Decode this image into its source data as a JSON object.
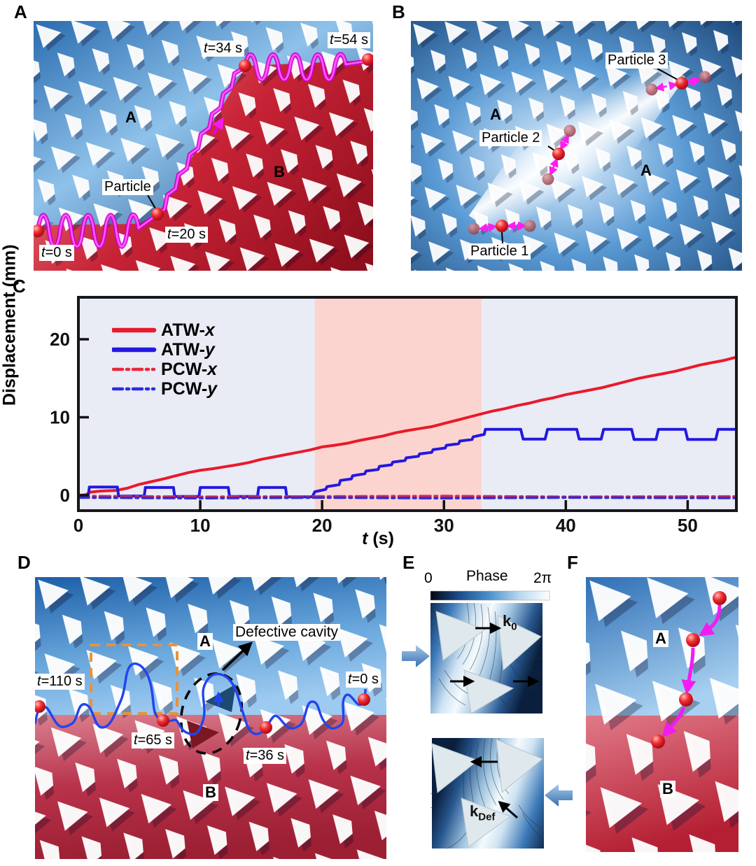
{
  "panel_labels": {
    "a": "A",
    "b": "B",
    "c": "C",
    "d": "D",
    "e": "E",
    "f": "F"
  },
  "panelA": {
    "t0": {
      "sym": "t",
      "rest": "=0 s"
    },
    "t20": {
      "sym": "t",
      "rest": "=20 s"
    },
    "t34": {
      "sym": "t",
      "rest": "=34 s"
    },
    "t54": {
      "sym": "t",
      "rest": "=54 s"
    },
    "particle": "Particle",
    "region_a": "A",
    "region_b": "B"
  },
  "panelB": {
    "particle1": "Particle 1",
    "particle2": "Particle 2",
    "particle3": "Particle 3",
    "region_a1": "A",
    "region_a2": "A"
  },
  "panelD": {
    "t110": {
      "sym": "t",
      "rest": "=110 s"
    },
    "t0": {
      "sym": "t",
      "rest": "=0 s"
    },
    "t65": {
      "sym": "t",
      "rest": "=65 s"
    },
    "t36": {
      "sym": "t",
      "rest": "=36 s"
    },
    "defective_cavity": "Defective cavity",
    "region_a": "A",
    "region_b": "B"
  },
  "panelE": {
    "colorbar": {
      "title": "Phase",
      "min": "0",
      "max": "2π"
    },
    "k0": {
      "base": "k",
      "sub": "0"
    },
    "kdef": {
      "base": "k",
      "sub": "Def"
    }
  },
  "panelF": {
    "region_a": "A",
    "region_b": "B"
  },
  "chart_data": {
    "type": "line",
    "title": "",
    "xlabel": {
      "sym": "t",
      "rest": " (s)"
    },
    "ylabel": "Displacement (mm)",
    "xlim": [
      0,
      54
    ],
    "ylim": [
      -2,
      25.4
    ],
    "xticks": [
      0,
      10,
      20,
      30,
      40,
      50
    ],
    "yticks": [
      0,
      10,
      20
    ],
    "grid": false,
    "legend_position": "upper-left",
    "bands": [
      {
        "x0": 0,
        "x1": 19.4,
        "color": "#e9ebf5"
      },
      {
        "x0": 19.4,
        "x1": 33.1,
        "color": "#fbd4cf"
      },
      {
        "x0": 33.1,
        "x1": 54,
        "color": "#e9ebf5"
      }
    ],
    "series": [
      {
        "label_prefix": "ATW-",
        "label_var": "x",
        "color": "#e81a2b",
        "dash": "solid",
        "points": [
          [
            0,
            0
          ],
          [
            0.6,
            0.05
          ],
          [
            1,
            0.4
          ],
          [
            1.6,
            0.5
          ],
          [
            2,
            0.55
          ],
          [
            3,
            0.6
          ],
          [
            4,
            0.9
          ],
          [
            5,
            1.4
          ],
          [
            6,
            1.75
          ],
          [
            7,
            2.1
          ],
          [
            8,
            2.5
          ],
          [
            9,
            2.9
          ],
          [
            10,
            3.2
          ],
          [
            11,
            3.4
          ],
          [
            12,
            3.65
          ],
          [
            13,
            3.9
          ],
          [
            14,
            4.2
          ],
          [
            15,
            4.6
          ],
          [
            16,
            4.9
          ],
          [
            17,
            5.2
          ],
          [
            18,
            5.5
          ],
          [
            19,
            5.8
          ],
          [
            20,
            6.2
          ],
          [
            21,
            6.4
          ],
          [
            22,
            6.65
          ],
          [
            23,
            7
          ],
          [
            24,
            7.3
          ],
          [
            25,
            7.6
          ],
          [
            26,
            8
          ],
          [
            27,
            8.3
          ],
          [
            28,
            8.55
          ],
          [
            29,
            8.8
          ],
          [
            30,
            9.2
          ],
          [
            31,
            9.6
          ],
          [
            32,
            10
          ],
          [
            33,
            10.4
          ],
          [
            34,
            10.8
          ],
          [
            35,
            11.1
          ],
          [
            36,
            11.5
          ],
          [
            37,
            11.8
          ],
          [
            38,
            12.2
          ],
          [
            39,
            12.5
          ],
          [
            40,
            12.9
          ],
          [
            41,
            13.2
          ],
          [
            42,
            13.5
          ],
          [
            43,
            13.8
          ],
          [
            44,
            14.2
          ],
          [
            45,
            14.6
          ],
          [
            46,
            15
          ],
          [
            47,
            15.3
          ],
          [
            48,
            15.6
          ],
          [
            49,
            15.9
          ],
          [
            50,
            16.3
          ],
          [
            51,
            16.7
          ],
          [
            52,
            17
          ],
          [
            53,
            17.3
          ],
          [
            54,
            17.7
          ]
        ]
      },
      {
        "label_prefix": "ATW-",
        "label_var": "y",
        "color": "#2318e0",
        "dash": "solid",
        "points": [
          [
            0,
            -0.1
          ],
          [
            0.8,
            -0.1
          ],
          [
            0.9,
            1.05
          ],
          [
            3.2,
            1.05
          ],
          [
            3.3,
            -0.1
          ],
          [
            5.4,
            -0.1
          ],
          [
            5.5,
            1.0
          ],
          [
            7.8,
            1.0
          ],
          [
            7.9,
            -0.15
          ],
          [
            9.9,
            -0.15
          ],
          [
            10.0,
            1.0
          ],
          [
            12.3,
            1.0
          ],
          [
            12.4,
            -0.15
          ],
          [
            14.7,
            -0.15
          ],
          [
            14.8,
            1.0
          ],
          [
            17.0,
            1.0
          ],
          [
            17.1,
            -0.2
          ],
          [
            19.2,
            -0.2
          ],
          [
            19.4,
            0.45
          ],
          [
            20.3,
            0.75
          ],
          [
            20.4,
            1.1
          ],
          [
            21.4,
            1.35
          ],
          [
            21.5,
            1.9
          ],
          [
            22.4,
            2.1
          ],
          [
            22.5,
            2.5
          ],
          [
            23.5,
            2.75
          ],
          [
            23.6,
            3.1
          ],
          [
            24.6,
            3.3
          ],
          [
            24.7,
            3.7
          ],
          [
            25.7,
            3.9
          ],
          [
            25.8,
            4.25
          ],
          [
            26.8,
            4.45
          ],
          [
            26.9,
            4.8
          ],
          [
            27.9,
            5.0
          ],
          [
            28.0,
            5.3
          ],
          [
            29.0,
            5.5
          ],
          [
            29.1,
            5.85
          ],
          [
            30.1,
            6.05
          ],
          [
            30.2,
            6.4
          ],
          [
            31.2,
            6.6
          ],
          [
            31.3,
            6.95
          ],
          [
            32.3,
            7.15
          ],
          [
            32.4,
            7.5
          ],
          [
            33.3,
            7.8
          ],
          [
            33.4,
            8.45
          ],
          [
            36.3,
            8.45
          ],
          [
            36.5,
            7.2
          ],
          [
            38.3,
            7.2
          ],
          [
            38.5,
            8.45
          ],
          [
            40.9,
            8.45
          ],
          [
            41.1,
            7.2
          ],
          [
            42.9,
            7.2
          ],
          [
            43.1,
            8.45
          ],
          [
            45.4,
            8.45
          ],
          [
            45.6,
            7.15
          ],
          [
            47.4,
            7.15
          ],
          [
            47.6,
            8.45
          ],
          [
            49.8,
            8.45
          ],
          [
            50.0,
            7.15
          ],
          [
            52.3,
            7.15
          ],
          [
            52.5,
            8.45
          ],
          [
            54,
            8.45
          ]
        ]
      },
      {
        "label_prefix": "PCW-",
        "label_var": "x",
        "color": "#e8283a",
        "dash": "dashdot",
        "points": [
          [
            0,
            -0.1
          ],
          [
            10,
            -0.2
          ],
          [
            20,
            -0.15
          ],
          [
            30,
            -0.1
          ],
          [
            40,
            -0.2
          ],
          [
            54,
            -0.15
          ]
        ]
      },
      {
        "label_prefix": "PCW-",
        "label_var": "y",
        "color": "#2c2ce0",
        "dash": "dashdot",
        "points": [
          [
            0,
            -0.3
          ],
          [
            10,
            -0.38
          ],
          [
            20,
            -0.3
          ],
          [
            30,
            -0.38
          ],
          [
            40,
            -0.3
          ],
          [
            54,
            -0.35
          ]
        ]
      }
    ]
  }
}
